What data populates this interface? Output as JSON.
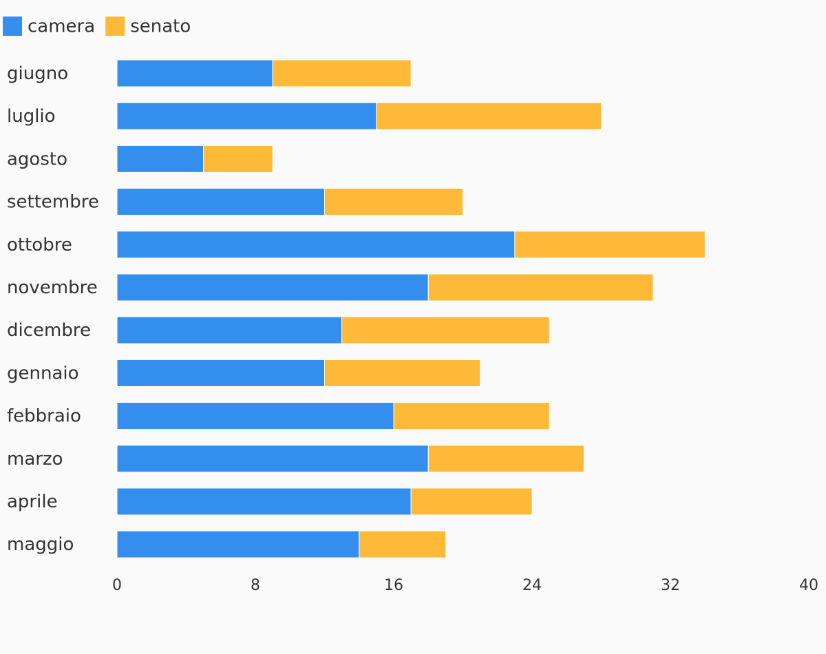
{
  "chart_data": {
    "type": "bar",
    "orientation": "horizontal",
    "stacked": true,
    "categories": [
      "giugno",
      "luglio",
      "agosto",
      "settembre",
      "ottobre",
      "novembre",
      "dicembre",
      "gennaio",
      "febbraio",
      "marzo",
      "aprile",
      "maggio"
    ],
    "series": [
      {
        "name": "camera",
        "color": "#338eee",
        "values": [
          9,
          15,
          5,
          12,
          23,
          18,
          13,
          12,
          16,
          18,
          17,
          14
        ]
      },
      {
        "name": "senato",
        "color": "#ffb938",
        "values": [
          8,
          13,
          4,
          8,
          11,
          13,
          12,
          9,
          9,
          9,
          7,
          5
        ]
      }
    ],
    "xlim": [
      0,
      40
    ],
    "xticks": [
      0,
      8,
      16,
      24,
      32,
      40
    ],
    "xlabel": "",
    "ylabel": "",
    "title": "",
    "grid": false,
    "legend_position": "top-left"
  }
}
